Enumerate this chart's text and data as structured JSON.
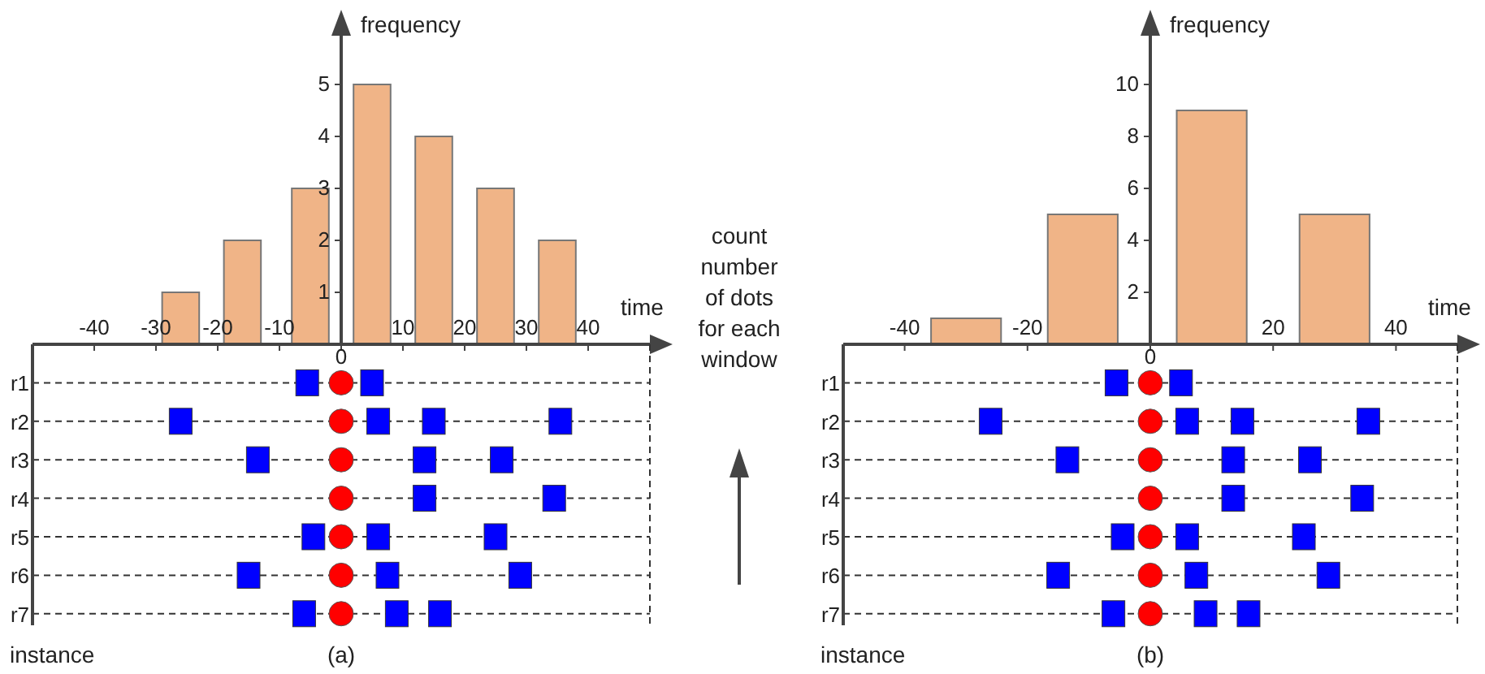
{
  "chart_data": [
    {
      "type": "bar",
      "x": [
        -26,
        -16,
        -5,
        5,
        15,
        25,
        35
      ],
      "values": [
        1,
        2,
        3,
        5,
        4,
        3,
        2
      ],
      "color": "#f0b487",
      "xlim": [
        -50,
        50
      ],
      "xticks": [
        -40,
        -30,
        -20,
        -10,
        10,
        20,
        30,
        40
      ],
      "ylim": [
        0,
        6
      ],
      "yticks": [
        1,
        2,
        3,
        4,
        5
      ],
      "xlabel": "time",
      "ylabel": "frequency",
      "annotations": [
        "count number of dots for each window"
      ]
    },
    {
      "type": "scatter",
      "orientation": "horizontal",
      "categories": [
        "r1",
        "r2",
        "r3",
        "r4",
        "r5",
        "r6",
        "r7"
      ],
      "xlim": [
        -50,
        50
      ],
      "xticks": [
        -40,
        -30,
        -20,
        -10,
        0,
        10,
        20,
        30,
        40
      ],
      "tick_labels": "y",
      "grid": "y",
      "line_style": "dashed",
      "ylabel": "instance",
      "annotations": [
        "0",
        "(a)"
      ],
      "series": [
        {
          "color": "#ff0000",
          "marker": "circle",
          "values": [
            0,
            0,
            0,
            0,
            0,
            0,
            0
          ]
        },
        {
          "color": "#0000ff",
          "marker": "square",
          "values": [
            -5.5,
            -26,
            -13.5,
            13.5,
            -4.5,
            -15,
            -6
          ]
        },
        {
          "color": "#0000ff",
          "marker": "square",
          "values": [
            5,
            6,
            13.5,
            34.5,
            6,
            7.5,
            9
          ]
        },
        {
          "color": "#0000ff",
          "marker": "square",
          "values": [
            null,
            15,
            26,
            null,
            25,
            29,
            16
          ]
        },
        {
          "color": "#0000ff",
          "marker": "square",
          "values": [
            null,
            35.5,
            null,
            null,
            null,
            null,
            null
          ]
        }
      ]
    },
    {
      "type": "bar",
      "x": [
        -30,
        -11,
        10,
        30
      ],
      "values": [
        1,
        5,
        9,
        5
      ],
      "color": "#f0b487",
      "xlim": [
        -50,
        50
      ],
      "xticks": [
        -40,
        -20,
        20,
        40
      ],
      "ylim": [
        0,
        12
      ],
      "yticks": [
        2,
        4,
        6,
        8,
        10
      ],
      "xlabel": "time",
      "ylabel": "frequency"
    },
    {
      "type": "scatter",
      "orientation": "horizontal",
      "categories": [
        "r1",
        "r2",
        "r3",
        "r4",
        "r5",
        "r6",
        "r7"
      ],
      "xlim": [
        -50,
        50
      ],
      "xticks": [
        -40,
        -20,
        0,
        20,
        40
      ],
      "tick_labels": "y",
      "grid": "y",
      "line_style": "dashed",
      "ylabel": "instance",
      "annotations": [
        "0",
        "(b)"
      ],
      "series": [
        {
          "color": "#ff0000",
          "marker": "circle",
          "values": [
            0,
            0,
            0,
            0,
            0,
            0,
            0
          ]
        },
        {
          "color": "#0000ff",
          "marker": "square",
          "values": [
            -5.5,
            -26,
            -13.5,
            13.5,
            -4.5,
            -15,
            -6
          ]
        },
        {
          "color": "#0000ff",
          "marker": "square",
          "values": [
            5,
            6,
            13.5,
            34.5,
            6,
            7.5,
            9
          ]
        },
        {
          "color": "#0000ff",
          "marker": "square",
          "values": [
            null,
            15,
            26,
            null,
            25,
            29,
            16
          ]
        },
        {
          "color": "#0000ff",
          "marker": "square",
          "values": [
            null,
            35.5,
            null,
            null,
            null,
            null,
            null
          ]
        }
      ]
    }
  ]
}
